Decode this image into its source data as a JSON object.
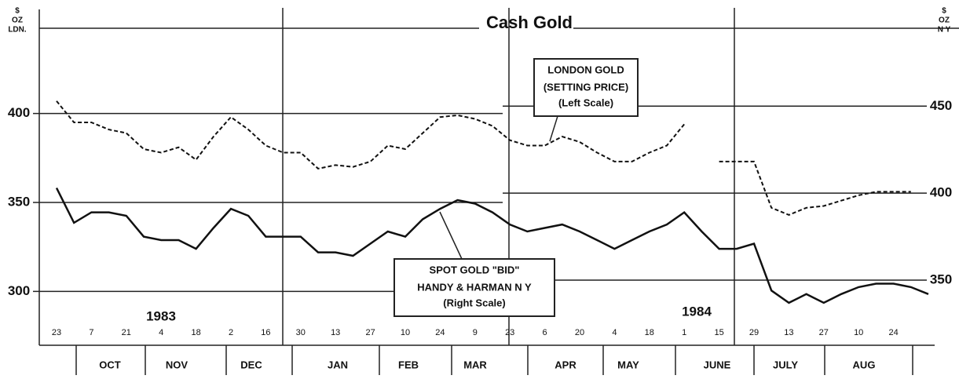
{
  "chart_data": {
    "type": "line",
    "title": "Cash Gold",
    "y_label": [
      "$",
      "OZ",
      "LDN."
    ],
    "y2_label": [
      "$",
      "OZ",
      "N Y"
    ],
    "categories": [
      "23",
      null,
      "7",
      null,
      "21",
      null,
      "4",
      null,
      "18",
      null,
      "2",
      null,
      "16",
      null,
      "30",
      null,
      "13",
      null,
      "27",
      null,
      "10",
      null,
      "24",
      null,
      "9",
      null,
      "23",
      null,
      "6",
      null,
      "20",
      null,
      "4",
      null,
      "18",
      null,
      "1",
      null,
      "15",
      null,
      "29",
      null,
      "13",
      null,
      "27",
      null,
      "10",
      null,
      "24",
      null,
      null
    ],
    "months": [
      "OCT",
      "NOV",
      "DEC",
      "JAN",
      "FEB",
      "MAR",
      "APR",
      "MAY",
      "JUNE",
      "JULY",
      "AUG"
    ],
    "years": [
      "1983",
      "1984"
    ],
    "series": [
      {
        "name": "LONDON GOLD",
        "label_lines": [
          "(SETTING PRICE)",
          "(Left Scale)"
        ],
        "color": "#111111",
        "dashed": true,
        "axis": "y",
        "values": [
          407,
          395,
          395,
          391,
          389,
          380,
          378,
          381,
          374,
          387,
          398,
          391,
          382,
          378,
          378,
          369,
          371,
          370,
          373,
          382,
          380,
          389,
          398,
          399,
          397,
          393,
          385,
          382,
          382,
          387,
          384,
          378,
          373,
          373,
          378,
          382,
          394,
          null,
          373,
          373,
          373,
          347,
          343,
          347,
          348,
          351,
          354,
          356,
          356,
          356,
          null
        ]
      },
      {
        "name": "SPOT GOLD \"BID\"",
        "label_lines": [
          "HANDY & HARMAN  N Y",
          "(Right Scale)"
        ],
        "color": "#111111",
        "dashed": false,
        "axis": "y2",
        "values": [
          403,
          383,
          389,
          389,
          387,
          375,
          373,
          373,
          368,
          380,
          391,
          387,
          375,
          375,
          375,
          366,
          366,
          364,
          371,
          378,
          375,
          385,
          391,
          396,
          394,
          389,
          382,
          378,
          380,
          382,
          378,
          373,
          368,
          373,
          378,
          382,
          389,
          378,
          368,
          368,
          371,
          344,
          337,
          342,
          337,
          342,
          346,
          348,
          348,
          346,
          342
        ]
      }
    ],
    "ylim": [
      275,
      455
    ],
    "yticks": [
      300,
      350,
      400
    ],
    "y2lim": [
      318,
      502
    ],
    "y2ticks": [
      350,
      400,
      450
    ],
    "grid": true
  }
}
